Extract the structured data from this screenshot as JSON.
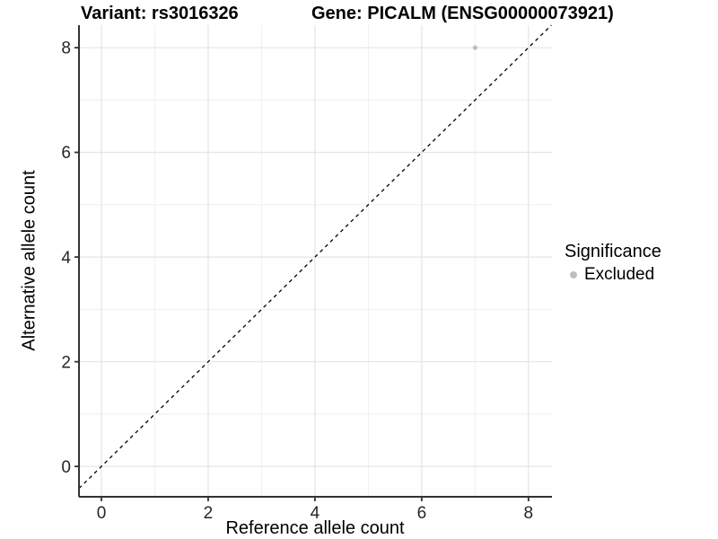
{
  "header": {
    "variant_title": "Variant: rs3016326",
    "gene_title": "Gene: PICALM (ENSG00000073921)"
  },
  "legend": {
    "title": "Significance",
    "items": [
      {
        "label": "Excluded",
        "color": "#bebebe"
      }
    ]
  },
  "colors": {
    "background": "#ffffff",
    "grid_major": "#e4e4e4",
    "grid_minor": "#efefef",
    "axis_line": "#333333",
    "tick_label": "#262626",
    "reference_line": "#000000",
    "excluded_point": "#bebebe"
  },
  "chart_data": {
    "type": "scatter",
    "title": "Variant: rs3016326   Gene: PICALM (ENSG00000073921)",
    "xlabel": "Reference allele count",
    "ylabel": "Alternative allele count",
    "xlim": [
      -0.42,
      8.44
    ],
    "ylim": [
      -0.58,
      8.43
    ],
    "xticks": [
      0,
      2,
      4,
      6,
      8
    ],
    "yticks": [
      0,
      2,
      4,
      6,
      8
    ],
    "xticks_minor": [
      1,
      3,
      5,
      7
    ],
    "yticks_minor": [
      1,
      3,
      5,
      7
    ],
    "grid": true,
    "legend_position": "right",
    "legend_title": "Significance",
    "series": [
      {
        "name": "Excluded",
        "color": "#bebebe",
        "points": [
          {
            "x": 7,
            "y": 8
          }
        ]
      }
    ],
    "reference_line": {
      "type": "identity",
      "equation": "y = x",
      "style": "dashed",
      "color": "#000000"
    }
  }
}
